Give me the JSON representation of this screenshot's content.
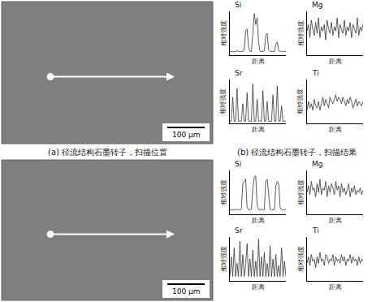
{
  "images": [
    {
      "scale_bar": "100 μm",
      "caption": "(a) 径流结构石墨转子，扫描位置"
    },
    {
      "scale_bar": "100 μm"
    }
  ],
  "chart_caption": "(b) 径流结构石墨转子，扫描结果",
  "chart_data": [
    {
      "type": "line",
      "title": "Si",
      "xlabel": "距离",
      "ylabel": "相对强度",
      "color": "#333333",
      "tick_labels": false,
      "xlim": [
        0,
        39
      ],
      "ylim": [
        0,
        100
      ],
      "x": [
        0,
        1,
        2,
        3,
        4,
        5,
        6,
        7,
        8,
        9,
        10,
        11,
        12,
        13,
        14,
        15,
        16,
        17,
        18,
        19,
        20,
        21,
        22,
        23,
        24,
        25,
        26,
        27,
        28,
        29,
        30,
        31,
        32,
        33,
        34,
        35,
        36,
        37,
        38,
        39
      ],
      "values": [
        8,
        8,
        9,
        8,
        8,
        10,
        9,
        8,
        9,
        8,
        12,
        55,
        60,
        20,
        9,
        8,
        50,
        95,
        70,
        85,
        30,
        9,
        8,
        9,
        10,
        45,
        50,
        12,
        9,
        8,
        9,
        8,
        25,
        30,
        10,
        9,
        8,
        9,
        8,
        8
      ]
    },
    {
      "type": "line",
      "title": "Mg",
      "xlabel": "距离",
      "ylabel": "相对强度",
      "color": "#333333",
      "tick_labels": false,
      "xlim": [
        0,
        39
      ],
      "ylim": [
        0,
        100
      ],
      "x": [
        0,
        1,
        2,
        3,
        4,
        5,
        6,
        7,
        8,
        9,
        10,
        11,
        12,
        13,
        14,
        15,
        16,
        17,
        18,
        19,
        20,
        21,
        22,
        23,
        24,
        25,
        26,
        27,
        28,
        29,
        30,
        31,
        32,
        33,
        34,
        35,
        36,
        37,
        38,
        39
      ],
      "values": [
        55,
        70,
        40,
        80,
        60,
        45,
        75,
        50,
        85,
        40,
        65,
        55,
        70,
        35,
        80,
        60,
        50,
        75,
        45,
        65,
        55,
        85,
        40,
        70,
        60,
        50,
        80,
        45,
        65,
        55,
        75,
        40,
        70,
        60,
        50,
        85,
        45,
        65,
        55,
        70
      ]
    },
    {
      "type": "line",
      "title": "Sr",
      "xlabel": "距离",
      "ylabel": "相对强度",
      "color": "#333333",
      "tick_labels": false,
      "xlim": [
        0,
        39
      ],
      "ylim": [
        0,
        100
      ],
      "x": [
        0,
        1,
        2,
        3,
        4,
        5,
        6,
        7,
        8,
        9,
        10,
        11,
        12,
        13,
        14,
        15,
        16,
        17,
        18,
        19,
        20,
        21,
        22,
        23,
        24,
        25,
        26,
        27,
        28,
        29,
        30,
        31,
        32,
        33,
        34,
        35,
        36,
        37,
        38,
        39
      ],
      "values": [
        5,
        5,
        60,
        5,
        5,
        80,
        5,
        5,
        5,
        45,
        5,
        5,
        70,
        5,
        5,
        5,
        90,
        5,
        5,
        55,
        5,
        5,
        5,
        75,
        5,
        5,
        50,
        5,
        5,
        5,
        65,
        5,
        5,
        85,
        5,
        5,
        40,
        5,
        5,
        5
      ]
    },
    {
      "type": "line",
      "title": "Ti",
      "xlabel": "距离",
      "ylabel": "相对强度",
      "color": "#333333",
      "tick_labels": false,
      "xlim": [
        0,
        39
      ],
      "ylim": [
        0,
        100
      ],
      "x": [
        0,
        1,
        2,
        3,
        4,
        5,
        6,
        7,
        8,
        9,
        10,
        11,
        12,
        13,
        14,
        15,
        16,
        17,
        18,
        19,
        20,
        21,
        22,
        23,
        24,
        25,
        26,
        27,
        28,
        29,
        30,
        31,
        32,
        33,
        34,
        35,
        36,
        37,
        38,
        39
      ],
      "values": [
        30,
        50,
        35,
        45,
        30,
        55,
        40,
        35,
        50,
        30,
        45,
        60,
        40,
        55,
        45,
        35,
        60,
        50,
        45,
        55,
        65,
        50,
        60,
        55,
        45,
        60,
        50,
        40,
        55,
        45,
        60,
        50,
        35,
        45,
        55,
        40,
        50,
        45,
        40,
        50
      ]
    },
    {
      "type": "line",
      "title": "Si",
      "xlabel": "距离",
      "ylabel": "相对强度",
      "color": "#333333",
      "tick_labels": false,
      "xlim": [
        0,
        39
      ],
      "ylim": [
        0,
        100
      ],
      "x": [
        0,
        1,
        2,
        3,
        4,
        5,
        6,
        7,
        8,
        9,
        10,
        11,
        12,
        13,
        14,
        15,
        16,
        17,
        18,
        19,
        20,
        21,
        22,
        23,
        24,
        25,
        26,
        27,
        28,
        29,
        30,
        31,
        32,
        33,
        34,
        35,
        36,
        37,
        38,
        39
      ],
      "values": [
        10,
        10,
        11,
        10,
        12,
        10,
        11,
        10,
        12,
        70,
        75,
        80,
        15,
        11,
        10,
        12,
        60,
        85,
        88,
        20,
        11,
        10,
        12,
        10,
        11,
        75,
        80,
        40,
        12,
        10,
        11,
        10,
        65,
        75,
        70,
        15,
        11,
        10,
        10,
        11
      ]
    },
    {
      "type": "line",
      "title": "Mg",
      "xlabel": "距离",
      "ylabel": "相对强度",
      "color": "#333333",
      "tick_labels": false,
      "xlim": [
        0,
        39
      ],
      "ylim": [
        0,
        100
      ],
      "x": [
        0,
        1,
        2,
        3,
        4,
        5,
        6,
        7,
        8,
        9,
        10,
        11,
        12,
        13,
        14,
        15,
        16,
        17,
        18,
        19,
        20,
        21,
        22,
        23,
        24,
        25,
        26,
        27,
        28,
        29,
        30,
        31,
        32,
        33,
        34,
        35,
        36,
        37,
        38,
        39
      ],
      "values": [
        50,
        65,
        45,
        75,
        55,
        60,
        40,
        70,
        50,
        80,
        45,
        60,
        55,
        75,
        40,
        65,
        50,
        70,
        60,
        45,
        75,
        55,
        65,
        40,
        70,
        50,
        60,
        45,
        55,
        70,
        40,
        60,
        50,
        65,
        45,
        55,
        50,
        60,
        45,
        55
      ]
    },
    {
      "type": "line",
      "title": "Sr",
      "xlabel": "距离",
      "ylabel": "相对强度",
      "color": "#333333",
      "tick_labels": false,
      "xlim": [
        0,
        39
      ],
      "ylim": [
        0,
        100
      ],
      "x": [
        0,
        1,
        2,
        3,
        4,
        5,
        6,
        7,
        8,
        9,
        10,
        11,
        12,
        13,
        14,
        15,
        16,
        17,
        18,
        19,
        20,
        21,
        22,
        23,
        24,
        25,
        26,
        27,
        28,
        29,
        30,
        31,
        32,
        33,
        34,
        35,
        36,
        37,
        38,
        39
      ],
      "values": [
        10,
        55,
        10,
        75,
        10,
        40,
        10,
        90,
        10,
        60,
        10,
        35,
        85,
        10,
        50,
        10,
        70,
        10,
        45,
        10,
        95,
        10,
        55,
        10,
        65,
        10,
        40,
        10,
        80,
        10,
        50,
        10,
        60,
        10,
        35,
        10,
        75,
        10,
        45,
        10
      ]
    },
    {
      "type": "line",
      "title": "Ti",
      "xlabel": "距离",
      "ylabel": "相对强度",
      "color": "#333333",
      "tick_labels": false,
      "xlim": [
        0,
        39
      ],
      "ylim": [
        0,
        100
      ],
      "x": [
        0,
        1,
        2,
        3,
        4,
        5,
        6,
        7,
        8,
        9,
        10,
        11,
        12,
        13,
        14,
        15,
        16,
        17,
        18,
        19,
        20,
        21,
        22,
        23,
        24,
        25,
        26,
        27,
        28,
        29,
        30,
        31,
        32,
        33,
        34,
        35,
        36,
        37,
        38,
        39
      ],
      "values": [
        40,
        55,
        35,
        60,
        45,
        50,
        30,
        55,
        40,
        65,
        45,
        50,
        35,
        60,
        55,
        40,
        50,
        45,
        60,
        35,
        55,
        45,
        50,
        40,
        60,
        45,
        55,
        35,
        50,
        45,
        60,
        40,
        55,
        45,
        50,
        35,
        55,
        40,
        50,
        45
      ]
    }
  ]
}
